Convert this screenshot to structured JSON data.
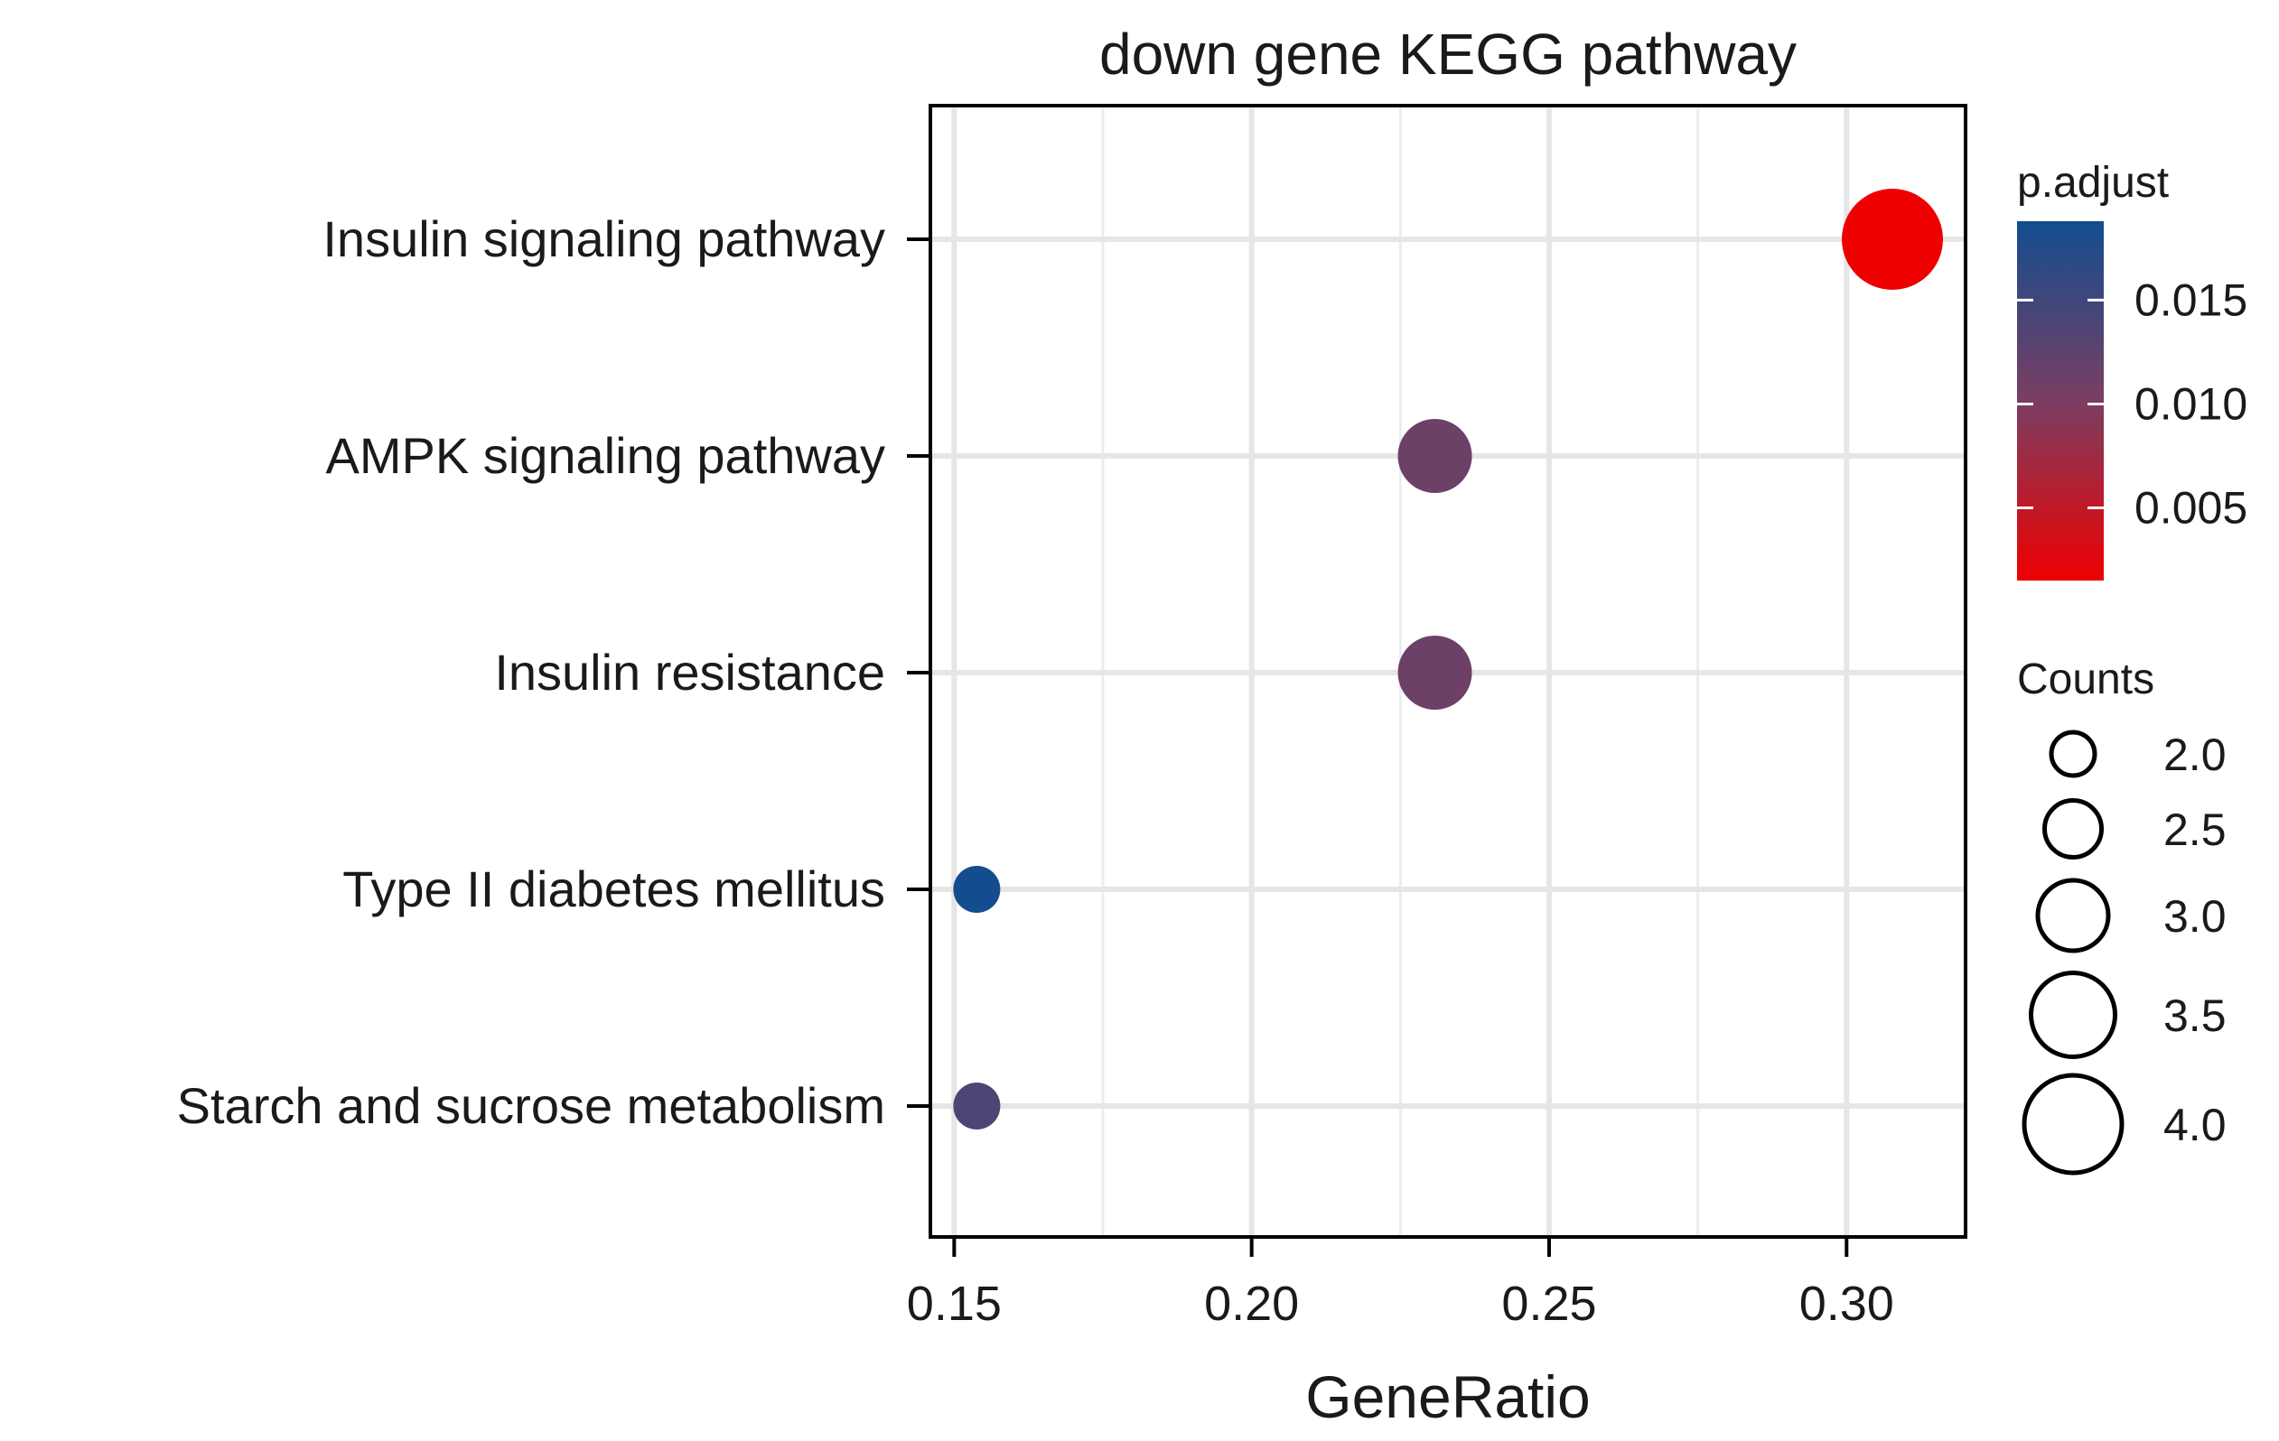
{
  "chart_data": {
    "type": "scatter",
    "title": "down gene KEGG pathway",
    "xlabel": "GeneRatio",
    "ylabel": "",
    "xlim": [
      0.146,
      0.32
    ],
    "xticks": [
      0.15,
      0.2,
      0.25,
      0.3
    ],
    "xtick_labels": [
      "0.15",
      "0.20",
      "0.25",
      "0.30"
    ],
    "grid": true,
    "categories": [
      "Insulin signaling pathway",
      "AMPK signaling pathway",
      "Insulin resistance",
      "Type II diabetes mellitus",
      "Starch and sucrose metabolism"
    ],
    "points": [
      {
        "term": "Insulin signaling pathway",
        "gene_ratio": 0.3077,
        "count": 4,
        "p_adjust": 0.0015
      },
      {
        "term": "AMPK signaling pathway",
        "gene_ratio": 0.2308,
        "count": 3,
        "p_adjust": 0.0112
      },
      {
        "term": "Insulin resistance",
        "gene_ratio": 0.2308,
        "count": 3,
        "p_adjust": 0.0112
      },
      {
        "term": "Type II diabetes mellitus",
        "gene_ratio": 0.1538,
        "count": 2,
        "p_adjust": 0.0188
      },
      {
        "term": "Starch and sucrose metabolism",
        "gene_ratio": 0.1538,
        "count": 2,
        "p_adjust": 0.014
      }
    ],
    "legend": {
      "color": {
        "title": "p.adjust",
        "range": [
          0.0015,
          0.0188
        ],
        "ticks": [
          0.015,
          0.01,
          0.005
        ],
        "tick_labels": [
          "0.015",
          "0.010",
          "0.005"
        ],
        "low_color": "#ee0000",
        "high_color": "#134d8f",
        "mid_color": "#7a3e62"
      },
      "size": {
        "title": "Counts",
        "values": [
          2.0,
          2.5,
          3.0,
          3.5,
          4.0
        ],
        "labels": [
          "2.0",
          "2.5",
          "3.0",
          "3.5",
          "4.0"
        ],
        "range": [
          2,
          4
        ]
      },
      "placement": "right"
    }
  }
}
